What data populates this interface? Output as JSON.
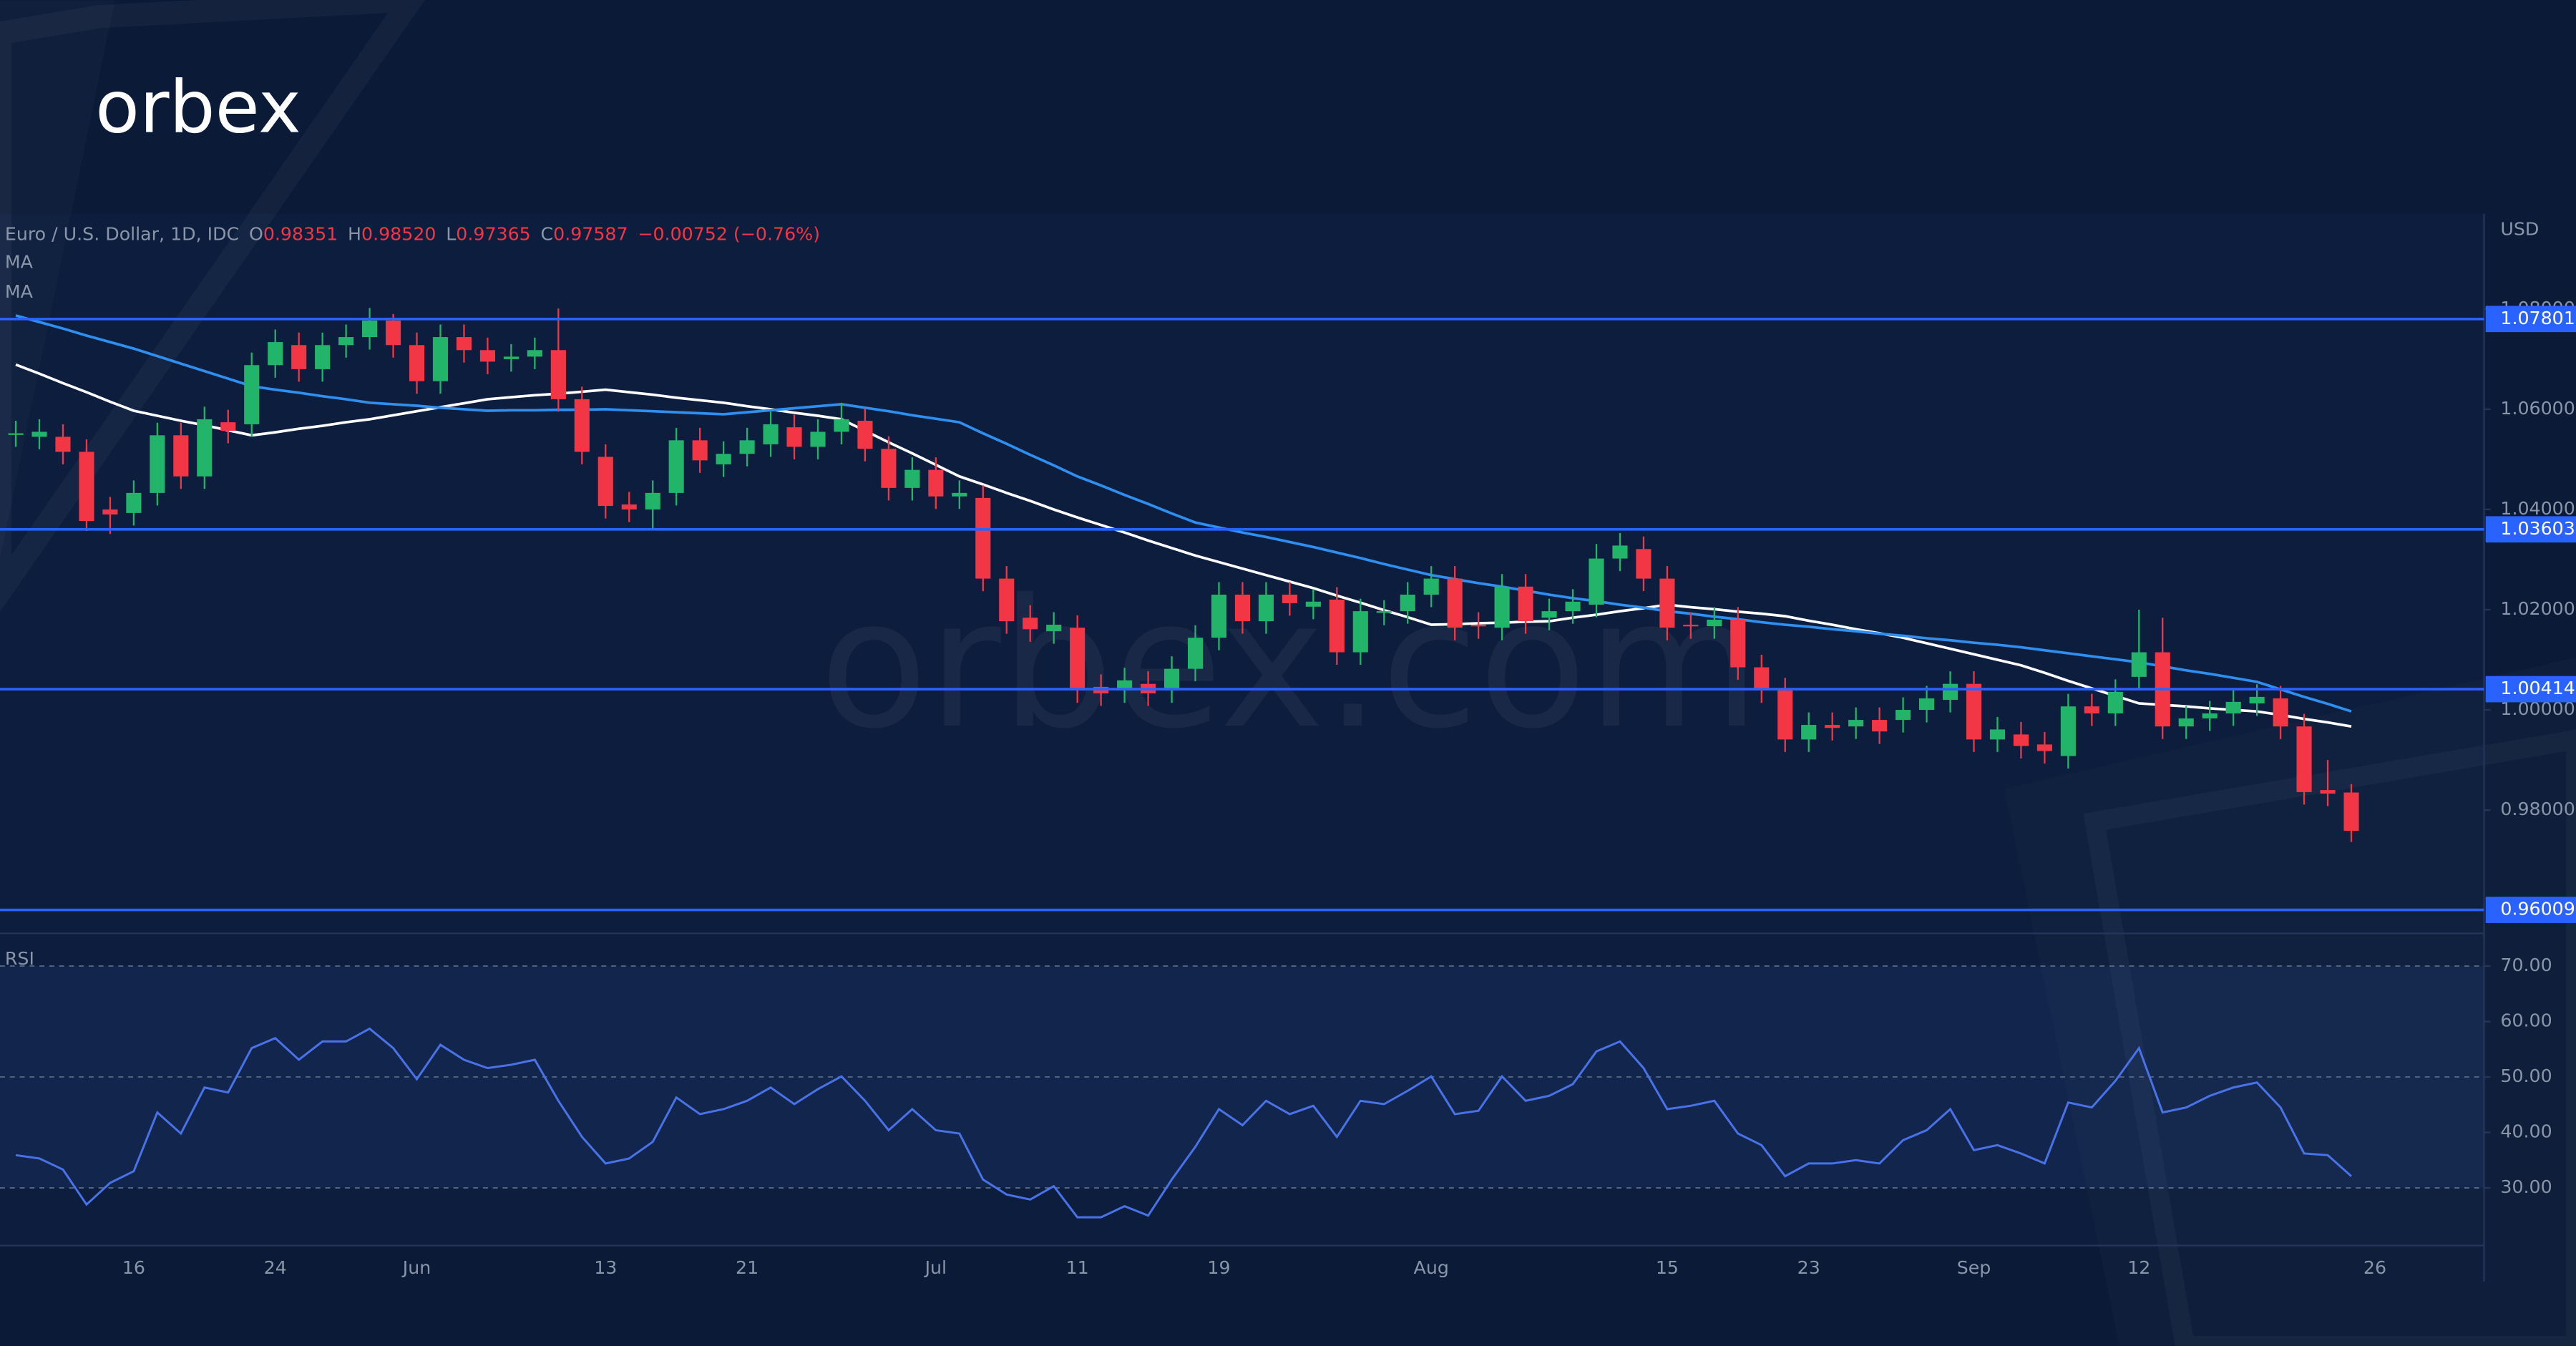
{
  "logo": "orbex",
  "watermark": "orbex.com",
  "chart_data": [
    {
      "type": "candlestick",
      "title": "Euro / U.S. Dollar, 1D, IDC",
      "quote": [
        {
          "label": "O",
          "value": "0.98351"
        },
        {
          "label": "H",
          "value": "0.98520"
        },
        {
          "label": "L",
          "value": "0.97365"
        },
        {
          "label": "C",
          "value": "0.97587"
        }
      ],
      "change": "−0.00752 (−0.76%)",
      "quote_color": "#f23645",
      "y_label": "USD",
      "categories": [
        null,
        null,
        null,
        null,
        null,
        "16",
        null,
        null,
        null,
        null,
        null,
        "24",
        null,
        null,
        null,
        null,
        null,
        "Jun",
        null,
        null,
        null,
        null,
        null,
        null,
        null,
        "13",
        null,
        null,
        null,
        null,
        null,
        "21",
        null,
        null,
        null,
        null,
        null,
        null,
        null,
        "Jul",
        null,
        null,
        null,
        null,
        null,
        "11",
        null,
        null,
        null,
        null,
        null,
        "19",
        null,
        null,
        null,
        null,
        null,
        null,
        null,
        null,
        "Aug",
        null,
        null,
        null,
        null,
        null,
        null,
        null,
        null,
        null,
        "15",
        null,
        null,
        null,
        null,
        null,
        "23",
        null,
        null,
        null,
        null,
        null,
        null,
        "Sep",
        null,
        null,
        null,
        null,
        null,
        null,
        "12",
        null,
        null,
        null,
        null,
        null,
        null,
        null,
        null,
        null,
        "26"
      ],
      "open": [
        1.055,
        1.0545,
        1.0545,
        1.0515,
        1.04,
        1.0393,
        1.0433,
        1.0548,
        1.0466,
        1.0574,
        1.057,
        1.0688,
        1.0728,
        1.068,
        1.0728,
        1.0744,
        1.0777,
        1.0728,
        1.0656,
        1.0744,
        1.0718,
        1.07,
        1.0705,
        1.0718,
        1.062,
        1.0505,
        1.041,
        1.04,
        1.0433,
        1.0538,
        1.049,
        1.0511,
        1.053,
        1.0564,
        1.0525,
        1.0555,
        1.0577,
        1.0521,
        1.0443,
        1.0479,
        1.0426,
        1.0423,
        1.0262,
        1.0184,
        1.0157,
        1.0164,
        1.0046,
        1.0039,
        1.0052,
        1.0039,
        1.0082,
        1.0144,
        1.023,
        1.0177,
        1.023,
        1.0206,
        1.022,
        1.0115,
        1.0194,
        1.0197,
        1.023,
        1.0262,
        1.017,
        1.0164,
        1.0246,
        1.0184,
        1.0197,
        1.021,
        1.0302,
        1.0321,
        1.0262,
        1.017,
        1.0167,
        1.018,
        1.0085,
        1.0039,
        0.9941,
        0.997,
        0.9967,
        0.998,
        0.998,
        1.0,
        1.002,
        1.0052,
        0.9941,
        0.9951,
        0.9931,
        0.9908,
        1.0007,
        0.9993,
        1.0066,
        1.0115,
        0.9967,
        0.9983,
        0.9993,
        1.0013,
        1.0023,
        0.9967,
        0.984,
        0.98351,
        null
      ],
      "high": [
        1.0577,
        1.058,
        1.057,
        1.054,
        1.0425,
        1.0458,
        1.0573,
        1.0573,
        1.0605,
        1.0599,
        1.0713,
        1.0759,
        1.0753,
        1.0753,
        1.0769,
        1.0802,
        1.079,
        1.0753,
        1.0769,
        1.0769,
        1.0743,
        1.073,
        1.0743,
        1.0801,
        1.0645,
        1.053,
        1.0435,
        1.0458,
        1.0563,
        1.0563,
        1.0536,
        1.0563,
        1.0595,
        1.0589,
        1.058,
        1.0613,
        1.0602,
        1.0546,
        1.0504,
        1.0504,
        1.0458,
        1.0448,
        1.0287,
        1.0209,
        1.0195,
        1.0189,
        1.0071,
        1.0084,
        1.0077,
        1.0107,
        1.0169,
        1.0255,
        1.0255,
        1.0255,
        1.0255,
        1.0241,
        1.0245,
        1.0222,
        1.0219,
        1.0255,
        1.0287,
        1.0287,
        1.0195,
        1.0271,
        1.0271,
        1.0222,
        1.0241,
        1.0331,
        1.0353,
        1.0346,
        1.0287,
        1.0195,
        1.0205,
        1.0205,
        1.011,
        1.0064,
        0.9995,
        0.9995,
        1.0005,
        1.0005,
        1.0025,
        1.0048,
        1.0077,
        1.0077,
        0.9986,
        0.9976,
        0.9956,
        1.0032,
        1.0032,
        1.0061,
        1.02,
        1.0184,
        1.0008,
        1.0018,
        1.0041,
        1.0051,
        1.0048,
        0.9992,
        0.99,
        0.9852,
        null
      ],
      "low": [
        1.0525,
        1.052,
        1.049,
        1.0357,
        1.0351,
        1.0368,
        1.0408,
        1.0441,
        1.0441,
        1.0532,
        1.0545,
        1.0663,
        1.0655,
        1.0655,
        1.0703,
        1.0719,
        1.0703,
        1.0631,
        1.0631,
        1.0693,
        1.067,
        1.0675,
        1.068,
        1.0595,
        1.049,
        1.0382,
        1.0375,
        1.0361,
        1.0408,
        1.0473,
        1.0465,
        1.0486,
        1.0505,
        1.05,
        1.05,
        1.053,
        1.0496,
        1.0418,
        1.0418,
        1.0401,
        1.0401,
        1.0237,
        1.0152,
        1.0136,
        1.0132,
        1.0014,
        1.0008,
        1.0014,
        1.0008,
        1.0014,
        1.0057,
        1.0119,
        1.0152,
        1.0152,
        1.0188,
        1.0181,
        1.009,
        1.009,
        1.0169,
        1.0172,
        1.0205,
        1.0139,
        1.0142,
        1.0139,
        1.0152,
        1.0159,
        1.0172,
        1.0185,
        1.0277,
        1.0237,
        1.0139,
        1.0142,
        1.0142,
        1.006,
        1.0014,
        0.9916,
        0.9916,
        0.9939,
        0.9942,
        0.9932,
        0.9955,
        0.9975,
        0.9995,
        0.9916,
        0.9916,
        0.9903,
        0.9893,
        0.9883,
        0.9968,
        0.9968,
        1.0041,
        0.9942,
        0.9942,
        0.9958,
        0.9968,
        0.9988,
        0.9942,
        0.9811,
        0.9808,
        0.97365,
        null
      ],
      "close": [
        1.0552,
        1.0555,
        1.0515,
        1.0377,
        1.039,
        1.0433,
        1.0548,
        1.0466,
        1.058,
        1.0557,
        1.0688,
        1.0734,
        1.068,
        1.0728,
        1.0744,
        1.0777,
        1.0728,
        1.0656,
        1.0744,
        1.0718,
        1.0695,
        1.0705,
        1.0718,
        1.062,
        1.0515,
        1.0407,
        1.04,
        1.0433,
        1.0538,
        1.0498,
        1.0511,
        1.0538,
        1.057,
        1.0525,
        1.0555,
        1.058,
        1.0521,
        1.0443,
        1.0479,
        1.0426,
        1.0433,
        1.0262,
        1.0177,
        1.0161,
        1.017,
        1.0039,
        1.0033,
        1.0059,
        1.0033,
        1.0082,
        1.0144,
        1.023,
        1.0177,
        1.023,
        1.0213,
        1.0216,
        1.0115,
        1.0197,
        1.0197,
        1.023,
        1.0262,
        1.0164,
        1.0167,
        1.0246,
        1.0177,
        1.0197,
        1.0216,
        1.0302,
        1.0328,
        1.0262,
        1.0164,
        1.0167,
        1.018,
        1.0085,
        1.0039,
        0.9941,
        0.997,
        0.9964,
        0.998,
        0.9957,
        1.0,
        1.0023,
        1.0052,
        0.9941,
        0.9961,
        0.9928,
        0.9918,
        1.0007,
        0.9993,
        1.0036,
        1.0115,
        0.9967,
        0.9983,
        0.9993,
        1.0016,
        1.0026,
        0.9967,
        0.9836,
        0.9833,
        0.97587,
        null
      ],
      "up_color": "#22b56a",
      "down_color": "#f23645",
      "series": [
        {
          "name": "MA",
          "color": "#ffffff",
          "values": [
            1.0689,
            1.0671,
            1.0652,
            1.0634,
            1.0615,
            1.0597,
            1.0587,
            1.0577,
            1.0568,
            1.0558,
            1.0548,
            1.0554,
            1.0561,
            1.0567,
            1.0574,
            1.058,
            1.0588,
            1.0596,
            1.0604,
            1.0612,
            1.062,
            1.0624,
            1.0628,
            1.0631,
            1.0635,
            1.0639,
            1.0634,
            1.0629,
            1.0623,
            1.0618,
            1.0613,
            1.0606,
            1.06,
            1.0593,
            1.0587,
            1.058,
            1.0557,
            1.0534,
            1.0512,
            1.0489,
            1.0466,
            1.045,
            1.0433,
            1.0417,
            1.04,
            1.0384,
            1.0369,
            1.0354,
            1.0338,
            1.0323,
            1.0308,
            1.0295,
            1.0282,
            1.0269,
            1.0256,
            1.0243,
            1.0228,
            1.0214,
            1.0199,
            1.0185,
            1.017,
            1.0171,
            1.0173,
            1.0174,
            1.0176,
            1.0177,
            1.0184,
            1.019,
            1.0197,
            1.0203,
            1.021,
            1.0205,
            1.0201,
            1.0196,
            1.0192,
            1.0187,
            1.0178,
            1.017,
            1.0161,
            1.0153,
            1.0144,
            1.0133,
            1.0122,
            1.0111,
            1.01,
            1.0089,
            1.0074,
            1.0058,
            1.0043,
            1.0028,
            1.0013,
            1.001,
            1.0007,
            1.0003,
            1.0,
            0.9997,
            0.999,
            0.9982,
            0.9975,
            0.9967,
            null
          ]
        },
        {
          "name": "MA",
          "color": "#2e8ff0",
          "values": [
            1.0787,
            1.0774,
            1.0761,
            1.0747,
            1.0734,
            1.0721,
            1.0706,
            1.0691,
            1.0676,
            1.0661,
            1.0646,
            1.0639,
            1.0633,
            1.0626,
            1.062,
            1.0613,
            1.061,
            1.0607,
            1.0603,
            1.06,
            1.0597,
            1.0598,
            1.0598,
            1.0599,
            1.0599,
            1.06,
            1.0598,
            1.0596,
            1.0594,
            1.0592,
            1.059,
            1.0594,
            1.0598,
            1.0602,
            1.0606,
            1.061,
            1.0603,
            1.0596,
            1.0588,
            1.0581,
            1.0574,
            1.0552,
            1.0531,
            1.0509,
            1.0488,
            1.0466,
            1.0448,
            1.0429,
            1.0411,
            1.0392,
            1.0374,
            1.0364,
            1.0354,
            1.0345,
            1.0335,
            1.0325,
            1.0314,
            1.0303,
            1.0291,
            1.028,
            1.0269,
            1.0261,
            1.0253,
            1.0246,
            1.0238,
            1.023,
            1.0223,
            1.0217,
            1.021,
            1.0204,
            1.0197,
            1.0192,
            1.0186,
            1.0181,
            1.0175,
            1.017,
            1.0166,
            1.0161,
            1.0157,
            1.0152,
            1.0148,
            1.0143,
            1.0139,
            1.0134,
            1.013,
            1.0125,
            1.0119,
            1.0113,
            1.0107,
            1.0101,
            1.0095,
            1.0087,
            1.0079,
            1.0072,
            1.0064,
            1.0056,
            1.0041,
            1.0026,
            1.0012,
            0.9997,
            null
          ]
        }
      ],
      "levels": [
        1.07801,
        1.03603,
        1.00414,
        0.96009
      ],
      "level_color": "#2962ff",
      "ylim": [
        0.9554,
        1.099
      ],
      "yticks": [
        {
          "value": 0.98,
          "label": "0.98000"
        },
        {
          "value": 1.0,
          "label": "1.00000"
        },
        {
          "value": 1.02,
          "label": "1.02000"
        },
        {
          "value": 1.04,
          "label": "1.04000"
        },
        {
          "value": 1.06,
          "label": "1.06000"
        },
        {
          "value": 1.08,
          "label": "1.08000"
        }
      ]
    },
    {
      "type": "line",
      "title": "RSI",
      "color": "#4a72e8",
      "values": [
        35.9,
        35.3,
        33.3,
        27.0,
        30.9,
        33.0,
        43.6,
        39.8,
        48.1,
        47.2,
        55.2,
        57.0,
        53.1,
        56.4,
        56.4,
        58.7,
        55.2,
        49.6,
        55.8,
        53.1,
        51.6,
        52.2,
        53.1,
        45.7,
        39.2,
        34.4,
        35.3,
        38.3,
        46.3,
        43.3,
        44.2,
        45.7,
        48.1,
        45.1,
        47.8,
        50.1,
        45.7,
        40.4,
        44.2,
        40.4,
        39.8,
        31.5,
        28.8,
        27.9,
        30.3,
        24.7,
        24.7,
        26.7,
        25.0,
        31.5,
        37.4,
        44.2,
        41.3,
        45.7,
        43.3,
        44.8,
        39.2,
        45.7,
        45.1,
        47.5,
        50.1,
        43.3,
        43.9,
        50.1,
        45.7,
        46.6,
        48.7,
        54.6,
        56.4,
        51.6,
        44.2,
        44.8,
        45.7,
        39.8,
        37.7,
        32.1,
        34.4,
        34.4,
        35.0,
        34.4,
        38.6,
        40.4,
        44.2,
        36.8,
        37.7,
        36.2,
        34.4,
        45.4,
        44.5,
        49.3,
        55.2,
        43.6,
        44.5,
        46.6,
        48.1,
        49.0,
        44.5,
        36.2,
        35.9,
        32.1,
        null
      ],
      "band": [
        30,
        70
      ],
      "levels": [
        30,
        50,
        70
      ],
      "ylim": [
        19.6,
        74.7
      ],
      "yticks": [
        {
          "value": 30,
          "label": "30.00"
        },
        {
          "value": 40,
          "label": "40.00"
        },
        {
          "value": 50,
          "label": "50.00"
        },
        {
          "value": 60,
          "label": "60.00"
        },
        {
          "value": 70,
          "label": "70.00"
        }
      ]
    }
  ]
}
